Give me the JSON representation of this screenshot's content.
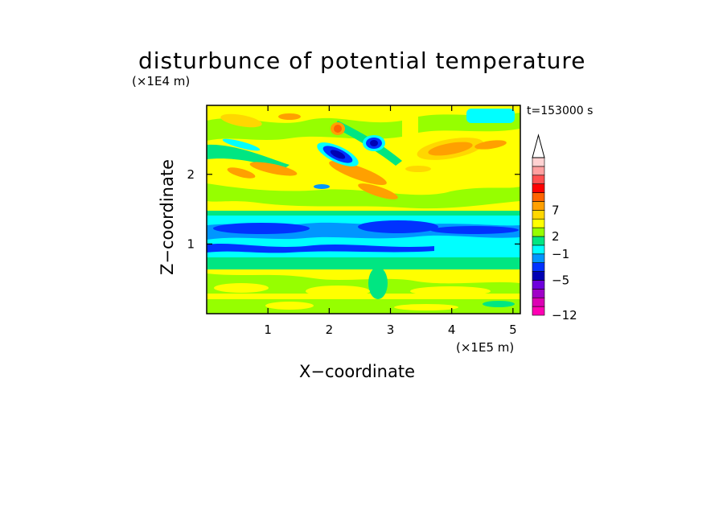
{
  "chart_data": {
    "type": "heatmap",
    "title": "disturbunce of potential temperature",
    "time_label": "t=153000 s",
    "xlabel": "X−coordinate",
    "ylabel": "Z−coordinate",
    "x_unit": "(×1E5 m)",
    "y_unit": "(×1E4 m)",
    "xlim": [
      0,
      5.12
    ],
    "ylim": [
      0,
      2.99
    ],
    "x_ticks": [
      "1",
      "2",
      "3",
      "4",
      "5"
    ],
    "y_ticks": [
      "1",
      "2"
    ],
    "colorbar": {
      "labels": [
        "7",
        "2",
        "−1",
        "−5",
        "−12"
      ],
      "colors": [
        "#ff00b4",
        "#dc00b4",
        "#a000c8",
        "#6e00dc",
        "#0000b4",
        "#0032ff",
        "#0096ff",
        "#00ffff",
        "#00e682",
        "#96ff00",
        "#ffff00",
        "#ffd700",
        "#ffa000",
        "#ff6400",
        "#ff0000",
        "#ff5050",
        "#ffa0a0",
        "#ffd2d2"
      ],
      "extend_max": true
    }
  }
}
